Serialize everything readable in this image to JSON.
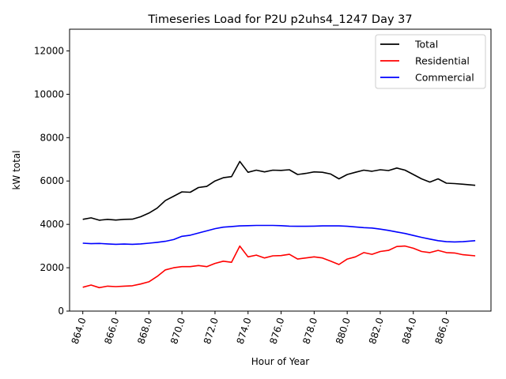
{
  "chart_data": {
    "type": "line",
    "title": "Timeseries Load for P2U p2uhs4_1247  Day 37",
    "xlabel": "Hour of Year",
    "ylabel": "kW total",
    "xlim": [
      863.2,
      888.7
    ],
    "ylim": [
      0,
      13000
    ],
    "xticks": [
      864.0,
      866.0,
      868.0,
      870.0,
      872.0,
      874.0,
      876.0,
      878.0,
      880.0,
      882.0,
      884.0,
      886.0
    ],
    "xtick_labels": [
      "864.0",
      "866.0",
      "868.0",
      "870.0",
      "872.0",
      "874.0",
      "876.0",
      "878.0",
      "880.0",
      "882.0",
      "884.0",
      "886.0"
    ],
    "yticks": [
      0,
      2000,
      4000,
      6000,
      8000,
      10000,
      12000
    ],
    "ytick_labels": [
      "0",
      "2000",
      "4000",
      "6000",
      "8000",
      "10000",
      "12000"
    ],
    "legend_position": "top-right",
    "x": [
      864.0,
      864.5,
      865.0,
      865.5,
      866.0,
      866.5,
      867.0,
      867.5,
      868.0,
      868.5,
      869.0,
      869.5,
      870.0,
      870.5,
      871.0,
      871.5,
      872.0,
      872.5,
      873.0,
      873.5,
      874.0,
      874.5,
      875.0,
      875.5,
      876.0,
      876.5,
      877.0,
      877.5,
      878.0,
      878.5,
      879.0,
      879.5,
      880.0,
      880.5,
      881.0,
      881.5,
      882.0,
      882.5,
      883.0,
      883.5,
      884.0,
      884.5,
      885.0,
      885.5,
      886.0,
      886.5,
      887.0,
      887.75
    ],
    "series": [
      {
        "name": "Total",
        "color": "#000000",
        "values": [
          4230,
          4300,
          4190,
          4230,
          4200,
          4230,
          4240,
          4350,
          4520,
          4750,
          5100,
          5300,
          5500,
          5480,
          5700,
          5750,
          6000,
          6150,
          6200,
          6900,
          6400,
          6500,
          6420,
          6500,
          6490,
          6520,
          6300,
          6350,
          6420,
          6400,
          6320,
          6100,
          6300,
          6400,
          6500,
          6450,
          6520,
          6480,
          6600,
          6500,
          6300,
          6100,
          5950,
          6100,
          5900,
          5880,
          5850,
          5800
        ]
      },
      {
        "name": "Residential",
        "color": "#ff0000",
        "values": [
          1100,
          1200,
          1080,
          1150,
          1130,
          1150,
          1170,
          1250,
          1350,
          1600,
          1900,
          2000,
          2050,
          2050,
          2100,
          2050,
          2200,
          2300,
          2250,
          3000,
          2500,
          2580,
          2450,
          2550,
          2560,
          2620,
          2400,
          2450,
          2500,
          2450,
          2300,
          2150,
          2400,
          2500,
          2700,
          2620,
          2750,
          2800,
          2980,
          3000,
          2900,
          2750,
          2700,
          2800,
          2700,
          2680,
          2600,
          2550
        ]
      },
      {
        "name": "Commercial",
        "color": "#0000ff",
        "values": [
          3130,
          3110,
          3120,
          3100,
          3080,
          3090,
          3080,
          3100,
          3130,
          3170,
          3220,
          3300,
          3450,
          3500,
          3600,
          3700,
          3800,
          3870,
          3900,
          3930,
          3940,
          3950,
          3950,
          3950,
          3940,
          3920,
          3910,
          3910,
          3920,
          3930,
          3930,
          3930,
          3910,
          3880,
          3850,
          3830,
          3780,
          3720,
          3650,
          3580,
          3490,
          3400,
          3320,
          3250,
          3200,
          3190,
          3200,
          3250
        ]
      }
    ]
  }
}
